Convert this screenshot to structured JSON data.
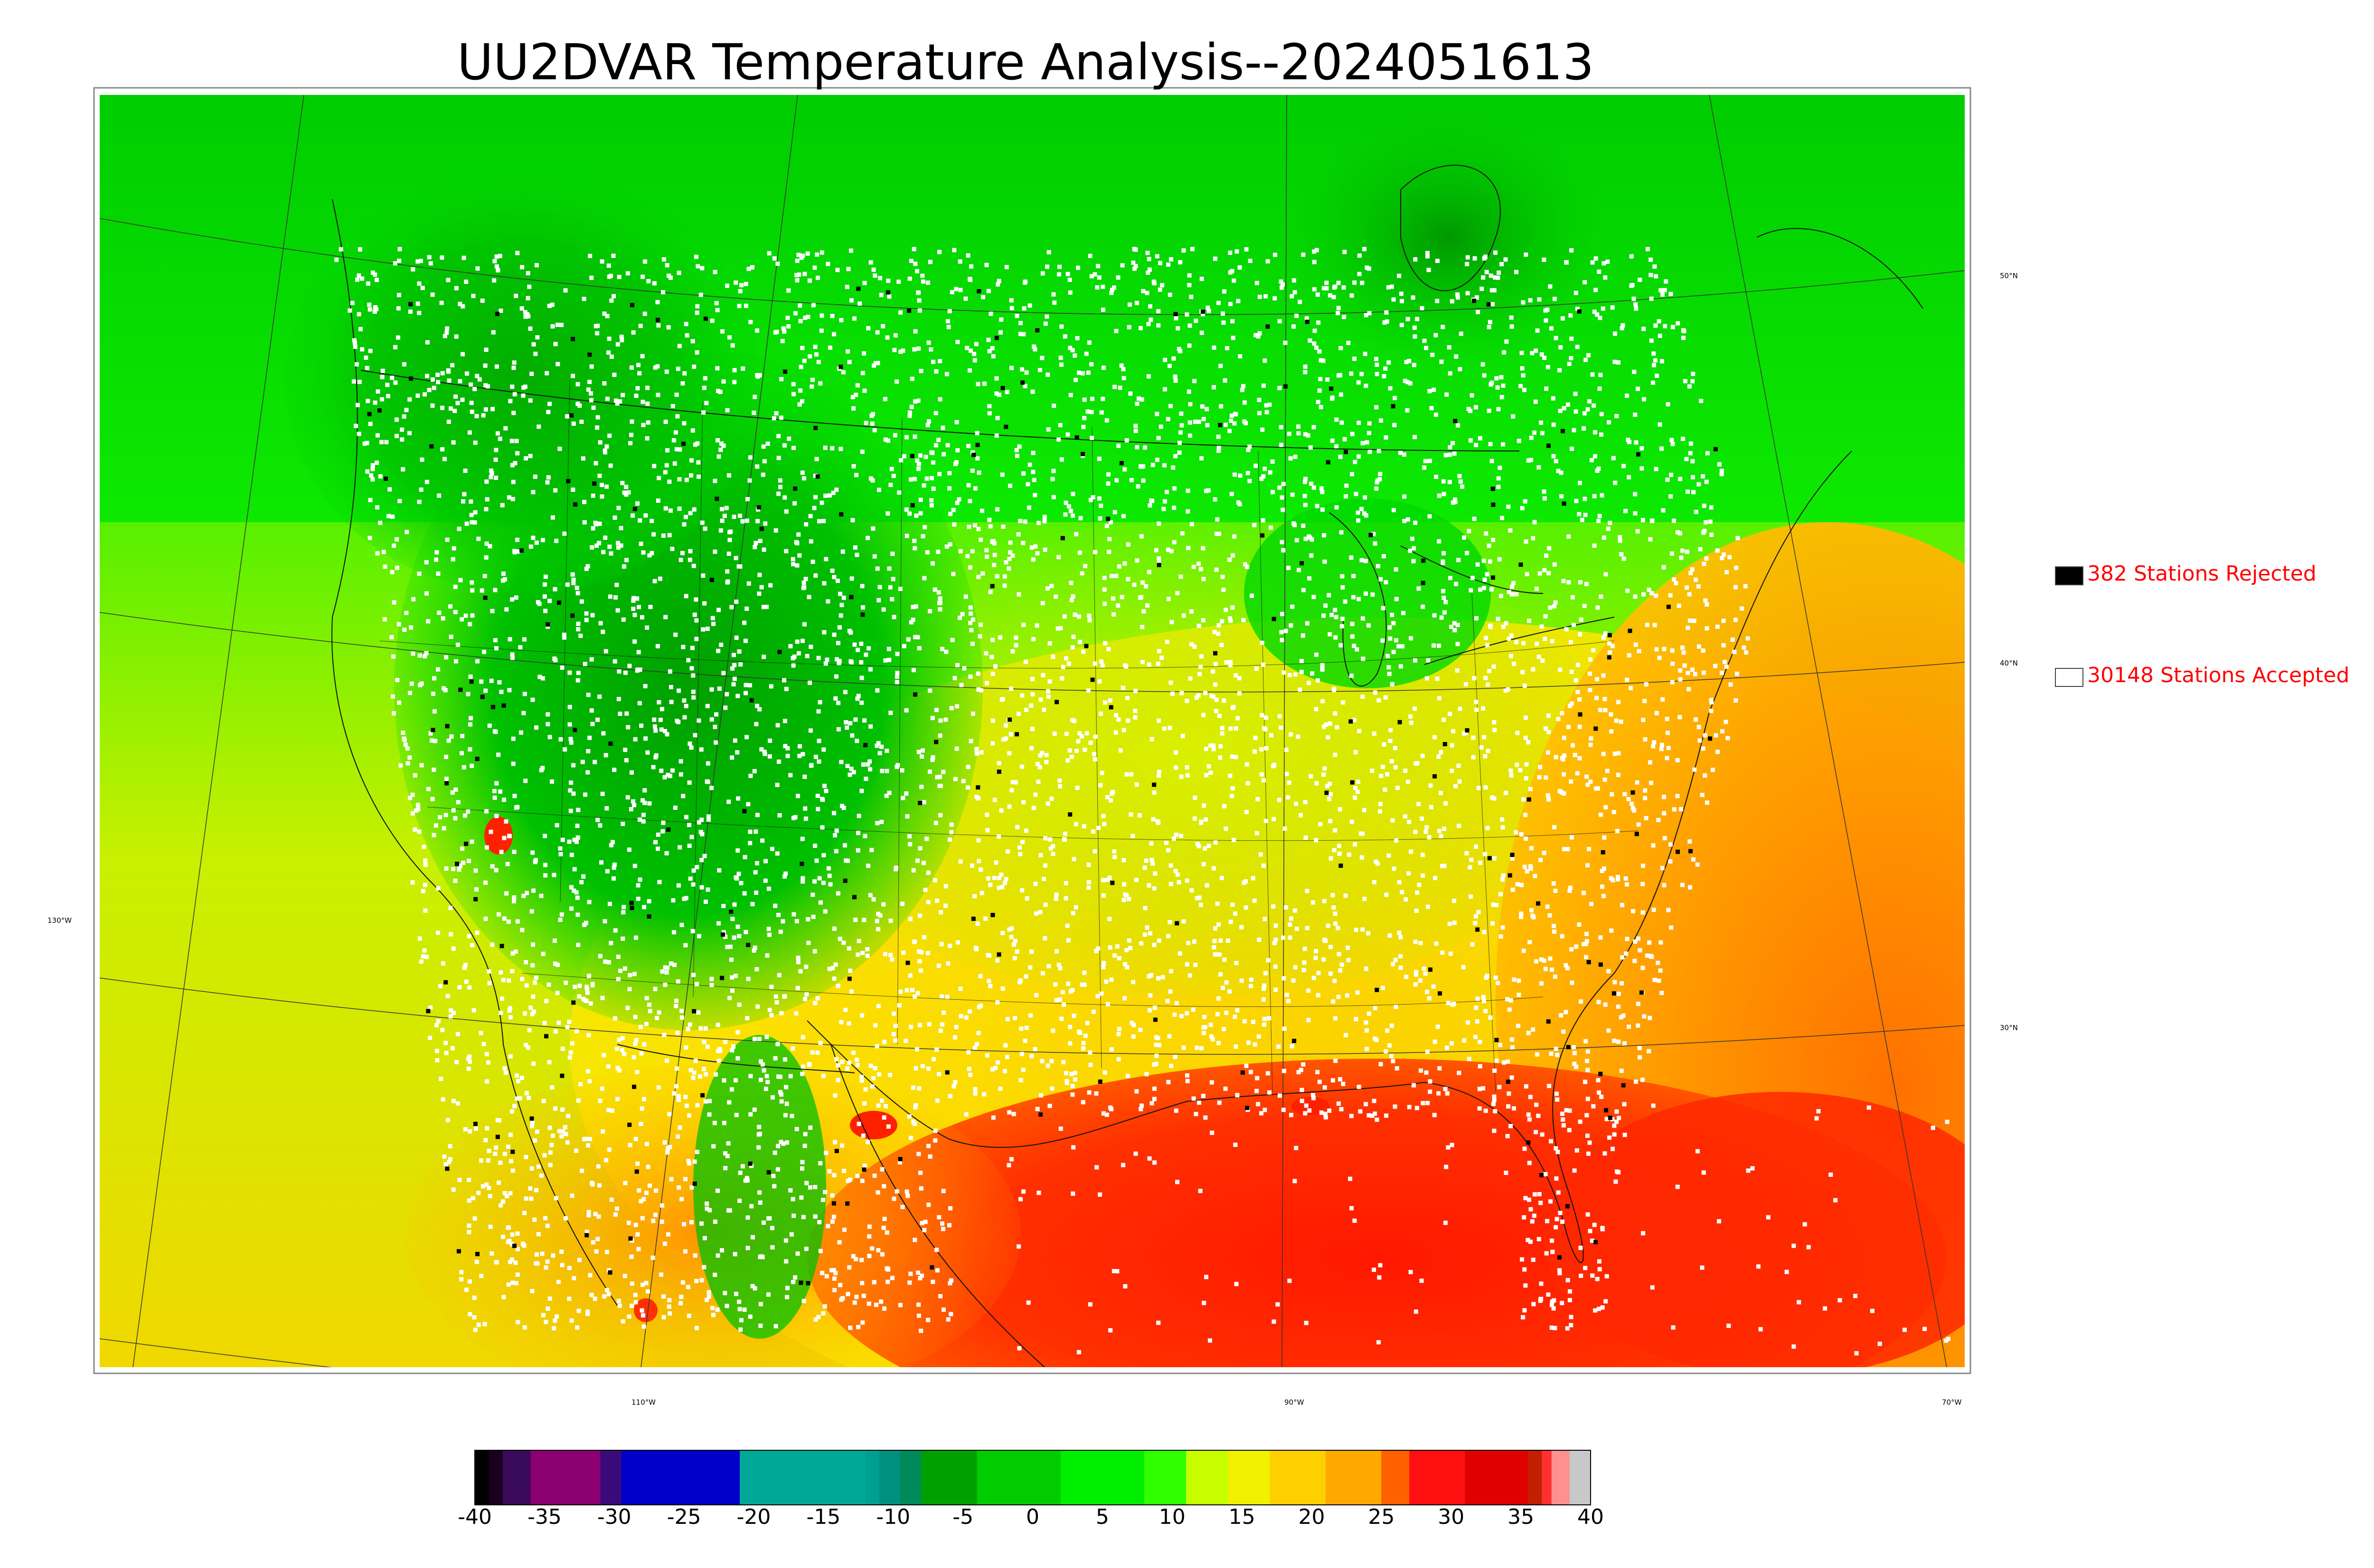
{
  "title": "UU2DVAR Temperature Analysis--2024051613",
  "legend": {
    "rejected": {
      "label": "382 Stations Rejected",
      "color": "#000000"
    },
    "accepted": {
      "label": "30148 Stations Accepted",
      "color": "#ffffff"
    }
  },
  "graticule": {
    "lat_labels": [
      "50°N",
      "40°N",
      "30°N"
    ],
    "lon_labels": [
      "130°W",
      "110°W",
      "90°W",
      "70°W"
    ]
  },
  "colorbar": {
    "ticks": [
      "-40",
      "-35",
      "-30",
      "-25",
      "-20",
      "-15",
      "-10",
      "-5",
      "0",
      "5",
      "10",
      "15",
      "20",
      "25",
      "30",
      "35",
      "40"
    ],
    "range": [
      -40,
      40
    ],
    "units_shown": false,
    "segments": [
      {
        "from": -40,
        "to": -39,
        "color": "#000000"
      },
      {
        "from": -39,
        "to": -38,
        "color": "#1a0020"
      },
      {
        "from": -38,
        "to": -36,
        "color": "#3a0a5a"
      },
      {
        "from": -36,
        "to": -31,
        "color": "#8a0070"
      },
      {
        "from": -31,
        "to": -29.5,
        "color": "#3a0a7a"
      },
      {
        "from": -29.5,
        "to": -21,
        "color": "#0000c8"
      },
      {
        "from": -21,
        "to": -12,
        "color": "#00a898"
      },
      {
        "from": -12,
        "to": -11,
        "color": "#00a090"
      },
      {
        "from": -11,
        "to": -9.5,
        "color": "#009080"
      },
      {
        "from": -9.5,
        "to": -8,
        "color": "#008a5a"
      },
      {
        "from": -8,
        "to": -4,
        "color": "#00a000"
      },
      {
        "from": -4,
        "to": 2,
        "color": "#00cc00"
      },
      {
        "from": 2,
        "to": 8,
        "color": "#00ee00"
      },
      {
        "from": 8,
        "to": 11,
        "color": "#30ff00"
      },
      {
        "from": 11,
        "to": 14,
        "color": "#c8ff00"
      },
      {
        "from": 14,
        "to": 17,
        "color": "#f0f000"
      },
      {
        "from": 17,
        "to": 21,
        "color": "#ffd000"
      },
      {
        "from": 21,
        "to": 25,
        "color": "#ffa800"
      },
      {
        "from": 25,
        "to": 27,
        "color": "#ff6000"
      },
      {
        "from": 27,
        "to": 31,
        "color": "#ff1010"
      },
      {
        "from": 31,
        "to": 35.5,
        "color": "#e00000"
      },
      {
        "from": 35.5,
        "to": 36.5,
        "color": "#c02000"
      },
      {
        "from": 36.5,
        "to": 37.2,
        "color": "#ff3030"
      },
      {
        "from": 37.2,
        "to": 38.5,
        "color": "#ff9090"
      },
      {
        "from": 38.5,
        "to": 40,
        "color": "#c8c8c8"
      }
    ]
  },
  "colors": {
    "ocean_cool": "#00dd00",
    "land_cool": "#00b000",
    "warm": "#ffd000",
    "hot": "#ff2000",
    "stations_accepted": "#ffffff",
    "stations_rejected": "#000000"
  }
}
